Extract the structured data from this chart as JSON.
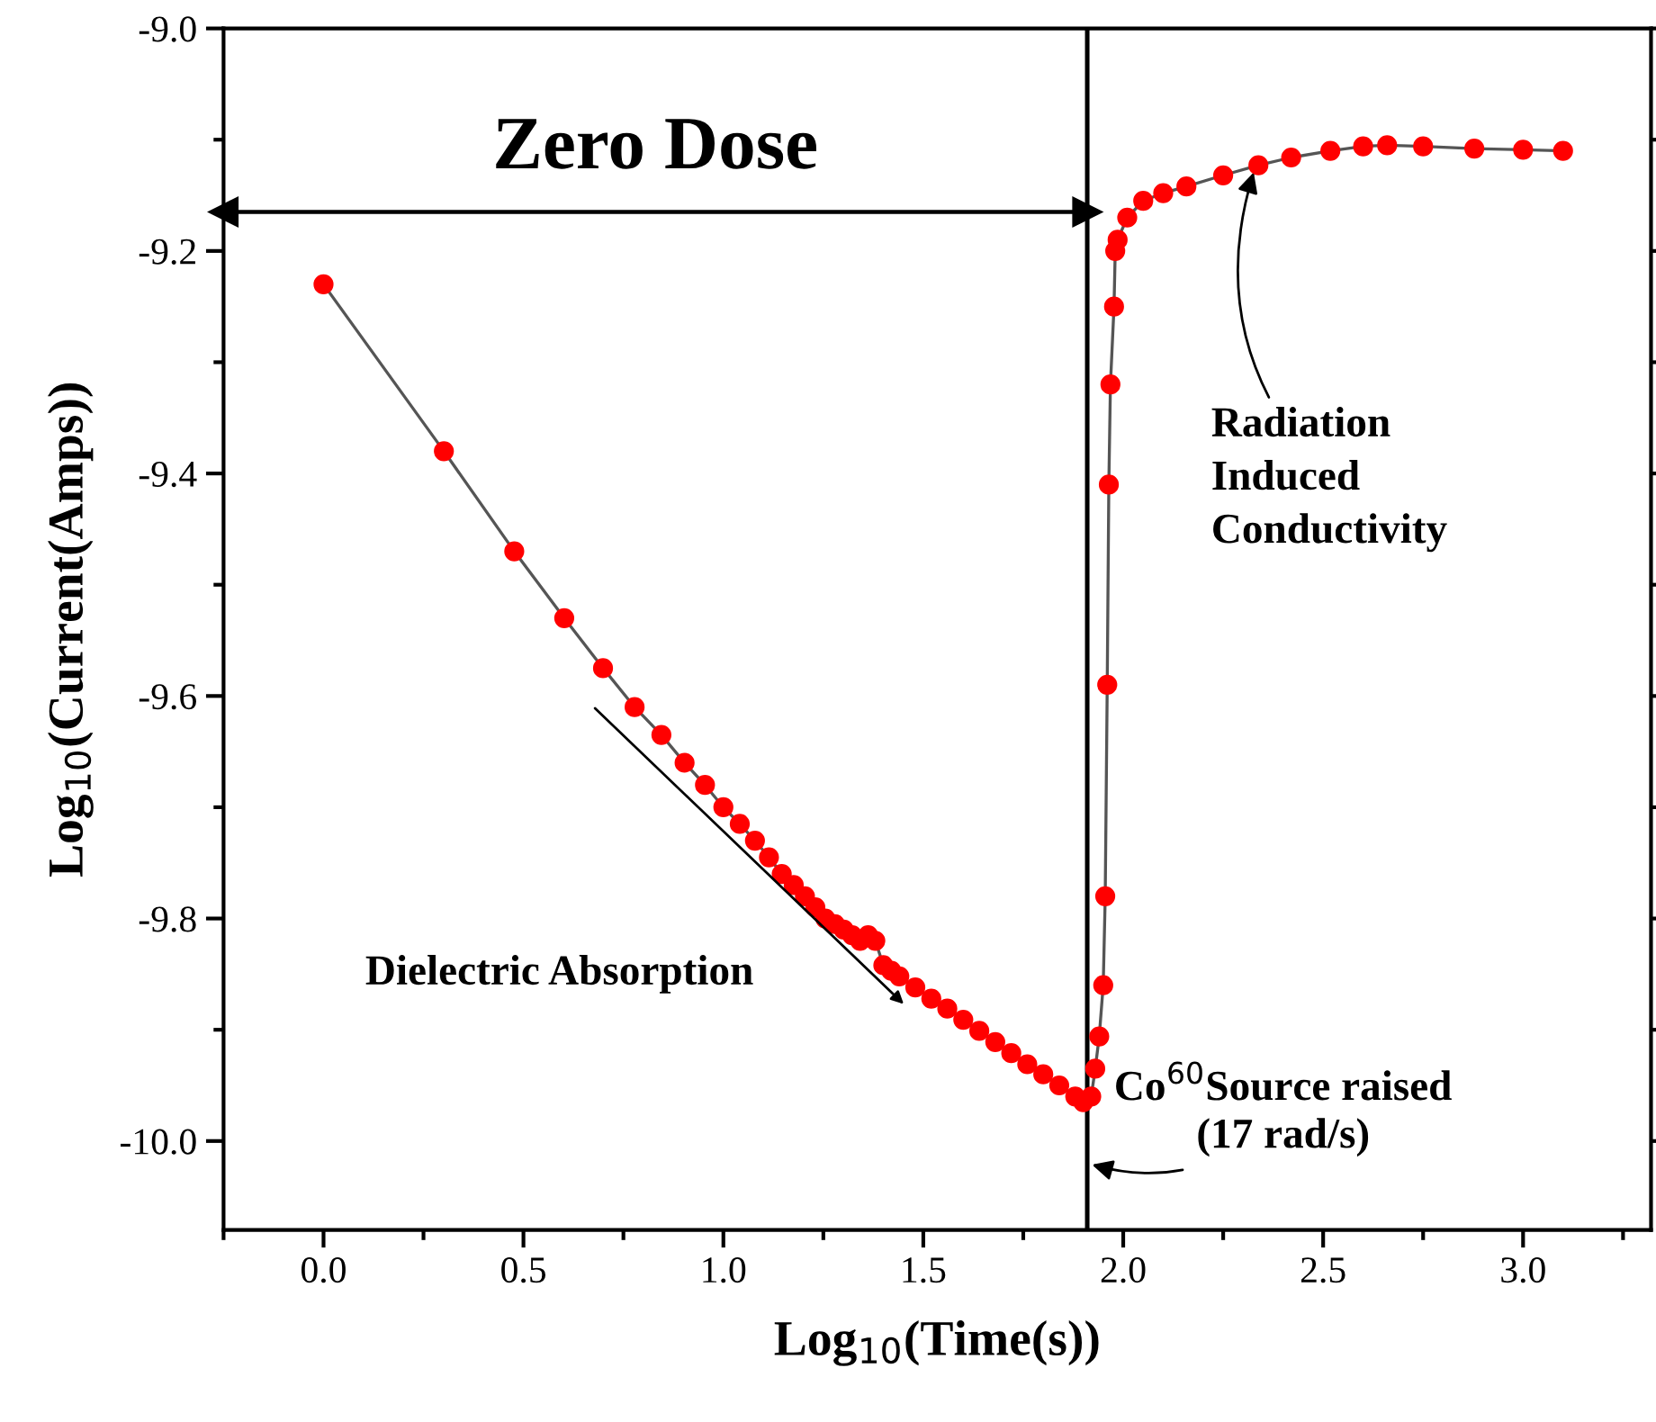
{
  "chart_data": {
    "type": "line",
    "xlabel": "Log$_{10}$(Time(s))",
    "ylabel": "Log$_{10}$(Current(Amps))",
    "xlim": [
      -0.25,
      3.32
    ],
    "ylim": [
      -10.08,
      -9.0
    ],
    "xticks": [
      {
        "value": 0,
        "label": "0.0"
      },
      {
        "value": 0.5,
        "label": "0.5"
      },
      {
        "value": 1.0,
        "label": "1.0"
      },
      {
        "value": 1.5,
        "label": "1.5"
      },
      {
        "value": 2.0,
        "label": "2.0"
      },
      {
        "value": 2.5,
        "label": "2.5"
      },
      {
        "value": 3.0,
        "label": "3.0"
      }
    ],
    "yticks": [
      {
        "value": -10.0,
        "label": "-10.0"
      },
      {
        "value": -9.8,
        "label": "-9.8"
      },
      {
        "value": -9.6,
        "label": "-9.6"
      },
      {
        "value": -9.4,
        "label": "-9.4"
      },
      {
        "value": -9.2,
        "label": "-9.2"
      },
      {
        "value": -9.0,
        "label": "-9.0"
      }
    ],
    "marker": "circle",
    "grid": false,
    "series": [
      {
        "color": "#ff0000",
        "x": [
          0,
          0.301,
          0.477,
          0.602,
          0.699,
          0.778,
          0.845,
          0.903,
          0.954,
          1.0,
          1.041,
          1.079,
          1.114,
          1.146,
          1.176,
          1.204,
          1.23,
          1.255,
          1.279,
          1.301,
          1.322,
          1.342,
          1.362,
          1.38,
          1.4,
          1.42,
          1.44,
          1.48,
          1.52,
          1.56,
          1.6,
          1.64,
          1.68,
          1.72,
          1.76,
          1.8,
          1.84,
          1.88,
          1.9,
          1.92,
          1.93,
          1.94,
          1.95,
          1.955,
          1.96,
          1.964,
          1.968,
          1.977,
          1.98,
          1.986,
          2.01,
          2.05,
          2.1,
          2.158,
          2.25,
          2.338,
          2.42,
          2.518,
          2.6,
          2.66,
          2.75,
          2.878,
          3.0,
          3.1
        ],
        "values": [
          -9.23,
          -9.38,
          -9.47,
          -9.53,
          -9.575,
          -9.61,
          -9.635,
          -9.66,
          -9.68,
          -9.7,
          -9.715,
          -9.73,
          -9.745,
          -9.76,
          -9.77,
          -9.78,
          -9.79,
          -9.8,
          -9.805,
          -9.81,
          -9.815,
          -9.82,
          -9.815,
          -9.82,
          -9.842,
          -9.847,
          -9.852,
          -9.862,
          -9.872,
          -9.881,
          -9.891,
          -9.901,
          -9.911,
          -9.921,
          -9.931,
          -9.94,
          -9.95,
          -9.96,
          -9.965,
          -9.96,
          -9.935,
          -9.906,
          -9.86,
          -9.78,
          -9.59,
          -9.41,
          -9.32,
          -9.25,
          -9.2,
          -9.19,
          -9.17,
          -9.155,
          -9.148,
          -9.142,
          -9.132,
          -9.123,
          -9.116,
          -9.11,
          -9.106,
          -9.105,
          -9.106,
          -9.108,
          -9.109,
          -9.11
        ]
      },
      {
        "type": "line",
        "name": "Zero Dose",
        "color": "#000000",
        "marker": "triangle",
        "x": [
          -0.25,
          1.91
        ],
        "values": [
          -9.165,
          -9.165
        ]
      }
    ],
    "ref_lines": [
      {
        "axis": "x",
        "value": 1.91,
        "color": "#000000"
      }
    ],
    "legend": false,
    "annotations": [
      {
        "text": "Radiation\nInduced\nConductivity",
        "x": 2.33,
        "y": -9.125
      },
      "Dielectric Absorption",
      {
        "text": "Co$^{60}$Source raised\n(17 rad/s)",
        "x": 1.91,
        "y": -10.02
      }
    ]
  }
}
